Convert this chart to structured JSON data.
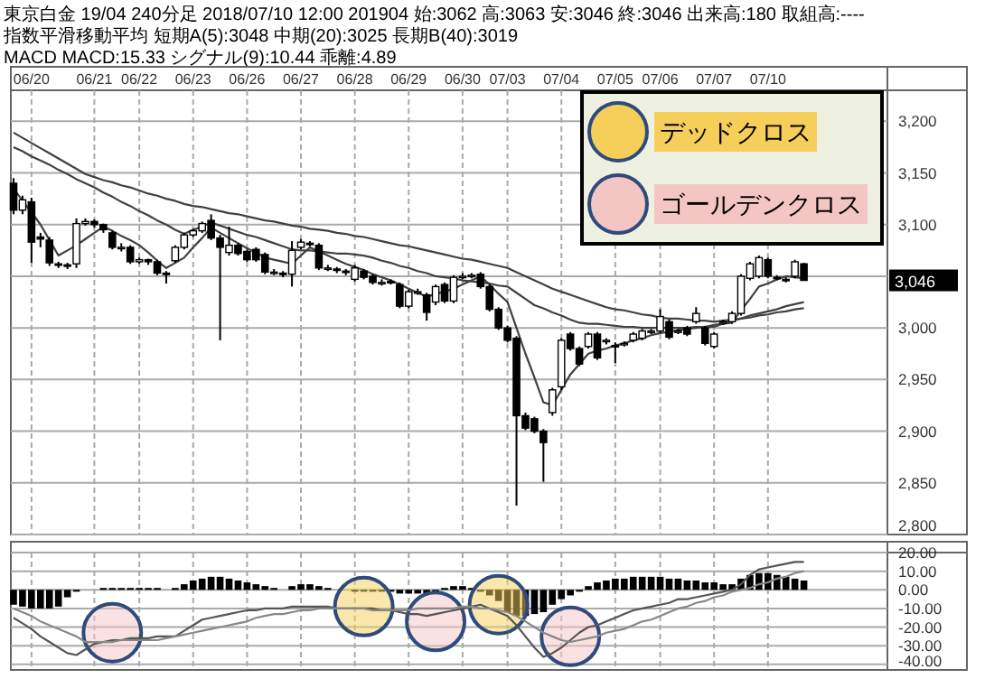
{
  "chart_data": [
    {
      "type": "candlestick",
      "title": "東京白金 19/04 240分足 2018/07/10 12:00 201904 始:3062 高:3063 安:3046 終:3046 出来高:180 取組高:----",
      "subtitle": "指数平滑移動平均 短期A(5):3048 中期(20):3025 長期B(40):3019",
      "categories": [
        null,
        null,
        "06/20",
        null,
        null,
        null,
        null,
        null,
        null,
        "06/21",
        null,
        null,
        null,
        null,
        "06/22",
        null,
        null,
        null,
        null,
        null,
        "06/23",
        null,
        null,
        null,
        null,
        null,
        "06/26",
        null,
        null,
        null,
        null,
        null,
        "06/27",
        null,
        null,
        null,
        null,
        null,
        "06/28",
        null,
        null,
        null,
        null,
        null,
        "06/29",
        null,
        null,
        null,
        null,
        null,
        "06/30",
        null,
        null,
        null,
        null,
        "07/03",
        null,
        null,
        null,
        null,
        null,
        "07/04",
        null,
        null,
        null,
        null,
        null,
        "07/05",
        null,
        null,
        null,
        null,
        "07/06",
        null,
        null,
        null,
        null,
        null,
        "07/07",
        null,
        null,
        null,
        null,
        null,
        "07/10",
        null,
        null,
        null,
        null
      ],
      "ohlc": [
        [
          3140,
          3145,
          3110,
          3114
        ],
        [
          3114,
          3128,
          3110,
          3124
        ],
        [
          3122,
          3126,
          3063,
          3083
        ],
        [
          3088,
          3092,
          3078,
          3086
        ],
        [
          3085,
          3088,
          3060,
          3063
        ],
        [
          3062,
          3064,
          3058,
          3061
        ],
        [
          3061,
          3063,
          3057,
          3060
        ],
        [
          3062,
          3106,
          3058,
          3101
        ],
        [
          3101,
          3106,
          3099,
          3103
        ],
        [
          3103,
          3105,
          3097,
          3100
        ],
        [
          3100,
          3101,
          3092,
          3095
        ],
        [
          3092,
          3094,
          3076,
          3078
        ],
        [
          3078,
          3082,
          3074,
          3078
        ],
        [
          3078,
          3080,
          3062,
          3064
        ],
        [
          3064,
          3068,
          3062,
          3066
        ],
        [
          3066,
          3067,
          3061,
          3064
        ],
        [
          3064,
          3066,
          3051,
          3053
        ],
        [
          3053,
          3055,
          3043,
          3052
        ],
        [
          3065,
          3080,
          3063,
          3078
        ],
        [
          3078,
          3092,
          3076,
          3090
        ],
        [
          3090,
          3096,
          3088,
          3094
        ],
        [
          3094,
          3103,
          3092,
          3101
        ],
        [
          3104,
          3110,
          3085,
          3087
        ],
        [
          3087,
          3090,
          2988,
          3078
        ],
        [
          3073,
          3098,
          3070,
          3080
        ],
        [
          3080,
          3082,
          3070,
          3072
        ],
        [
          3074,
          3076,
          3064,
          3066
        ],
        [
          3076,
          3078,
          3064,
          3066
        ],
        [
          3071,
          3073,
          3052,
          3054
        ],
        [
          3054,
          3057,
          3051,
          3054
        ],
        [
          3053,
          3055,
          3049,
          3052
        ],
        [
          3052,
          3084,
          3040,
          3075
        ],
        [
          3078,
          3086,
          3076,
          3083
        ],
        [
          3082,
          3084,
          3079,
          3081
        ],
        [
          3080,
          3082,
          3056,
          3058
        ],
        [
          3058,
          3061,
          3055,
          3058
        ],
        [
          3057,
          3059,
          3053,
          3056
        ],
        [
          3055,
          3057,
          3051,
          3054
        ],
        [
          3047,
          3061,
          3045,
          3058
        ],
        [
          3055,
          3057,
          3047,
          3049
        ],
        [
          3050,
          3052,
          3042,
          3044
        ],
        [
          3044,
          3047,
          3041,
          3044
        ],
        [
          3045,
          3047,
          3042,
          3044
        ],
        [
          3042,
          3044,
          3019,
          3021
        ],
        [
          3021,
          3037,
          3019,
          3035
        ],
        [
          3035,
          3038,
          3032,
          3035
        ],
        [
          3032,
          3034,
          3007,
          3015
        ],
        [
          3025,
          3042,
          3022,
          3040
        ],
        [
          3042,
          3044,
          3024,
          3026
        ],
        [
          3026,
          3051,
          3024,
          3049
        ],
        [
          3050,
          3053,
          3047,
          3050
        ],
        [
          3051,
          3053,
          3048,
          3051
        ],
        [
          3052,
          3054,
          3038,
          3040
        ],
        [
          3040,
          3042,
          3016,
          3018
        ],
        [
          3018,
          3020,
          2998,
          3000
        ],
        [
          3000,
          3002,
          2986,
          2988
        ],
        [
          2990,
          2992,
          2828,
          2915
        ],
        [
          2915,
          2918,
          2901,
          2903
        ],
        [
          2912,
          2914,
          2898,
          2900
        ],
        [
          2900,
          2902,
          2851,
          2889
        ],
        [
          2918,
          2942,
          2915,
          2940
        ],
        [
          2943,
          2990,
          2940,
          2988
        ],
        [
          2994,
          2996,
          2978,
          2980
        ],
        [
          2980,
          2982,
          2963,
          2965
        ],
        [
          2982,
          2996,
          2980,
          2994
        ],
        [
          2994,
          2996,
          2969,
          2971
        ],
        [
          2987,
          2990,
          2984,
          2988
        ],
        [
          2983,
          2986,
          2966,
          2982
        ],
        [
          2984,
          2987,
          2982,
          2985
        ],
        [
          2988,
          2996,
          2986,
          2994
        ],
        [
          2990,
          2999,
          2988,
          2997
        ],
        [
          2996,
          2999,
          2994,
          2997
        ],
        [
          2997,
          3018,
          2995,
          3011
        ],
        [
          3006,
          3008,
          2989,
          2991
        ],
        [
          2996,
          2999,
          2994,
          2997
        ],
        [
          3000,
          3002,
          2992,
          2994
        ],
        [
          3006,
          3020,
          3004,
          3014
        ],
        [
          3000,
          3002,
          2983,
          2985
        ],
        [
          2982,
          2996,
          2980,
          2994
        ],
        [
          3005,
          3008,
          3003,
          3006
        ],
        [
          3006,
          3016,
          3004,
          3014
        ],
        [
          3014,
          3052,
          3012,
          3050
        ],
        [
          3048,
          3064,
          3046,
          3062
        ],
        [
          3050,
          3070,
          3048,
          3068
        ],
        [
          3066,
          3068,
          3048,
          3050
        ],
        [
          3049,
          3051,
          3046,
          3048
        ],
        [
          3047,
          3049,
          3044,
          3046
        ],
        [
          3050,
          3066,
          3048,
          3064
        ],
        [
          3062,
          3063,
          3046,
          3046
        ]
      ],
      "series": [
        {
          "type": "line",
          "color": "#404040",
          "values": [
            3135,
            3123,
            3112,
            3100,
            3085,
            3070,
            3075,
            3080,
            3086,
            3092,
            3098,
            3094,
            3089,
            3085,
            3080,
            3073,
            3065,
            3058,
            3063,
            3068,
            3078,
            3087,
            3097,
            3092,
            3087,
            3082,
            3077,
            3073,
            3068,
            3066,
            3064,
            3062,
            3070,
            3078,
            3074,
            3070,
            3066,
            3062,
            3059,
            3056,
            3052,
            3049,
            3046,
            3042,
            3038,
            3034,
            3030,
            3033,
            3035,
            3038,
            3042,
            3046,
            3050,
            3042,
            3033,
            3025,
            3000,
            2975,
            2952,
            2928,
            2925,
            2940,
            2955,
            2965,
            2975,
            2978,
            2980,
            2983,
            2985,
            2988,
            2990,
            2993,
            2995,
            2996,
            2998,
            2999,
            3000,
            3001,
            3003,
            3004,
            3005,
            3017,
            3028,
            3040,
            3043,
            3047,
            3050,
            3049,
            3048
          ]
        },
        {
          "type": "line",
          "color": "#404040",
          "values": [
            3175,
            3171,
            3166,
            3162,
            3158,
            3153,
            3149,
            3144,
            3140,
            3136,
            3131,
            3127,
            3122,
            3118,
            3113,
            3109,
            3104,
            3100,
            3095,
            3091,
            3095,
            3098,
            3102,
            3099,
            3096,
            3093,
            3090,
            3088,
            3085,
            3082,
            3079,
            3076,
            3075,
            3075,
            3074,
            3073,
            3072,
            3072,
            3071,
            3070,
            3068,
            3065,
            3063,
            3060,
            3058,
            3055,
            3053,
            3050,
            3049,
            3048,
            3046,
            3045,
            3044,
            3043,
            3041,
            3040,
            3034,
            3028,
            3022,
            3019,
            3015,
            3012,
            3008,
            3005,
            3004,
            3004,
            3003,
            3002,
            3001,
            3001,
            3000,
            3000,
            3000,
            3000,
            3000,
            3000,
            3001,
            3001,
            3001,
            3004,
            3007,
            3009,
            3012,
            3014,
            3016,
            3018,
            3021,
            3023,
            3025
          ]
        },
        {
          "type": "line",
          "color": "#404040",
          "values": [
            3189,
            3184,
            3179,
            3174,
            3169,
            3164,
            3159,
            3154,
            3149,
            3146,
            3143,
            3141,
            3138,
            3136,
            3133,
            3130,
            3128,
            3125,
            3123,
            3120,
            3118,
            3117,
            3115,
            3113,
            3111,
            3110,
            3108,
            3106,
            3104,
            3103,
            3101,
            3099,
            3098,
            3096,
            3095,
            3094,
            3092,
            3091,
            3089,
            3088,
            3086,
            3084,
            3082,
            3080,
            3079,
            3077,
            3075,
            3073,
            3071,
            3069,
            3067,
            3066,
            3064,
            3062,
            3060,
            3058,
            3054,
            3050,
            3046,
            3042,
            3038,
            3035,
            3032,
            3029,
            3026,
            3023,
            3020,
            3018,
            3017,
            3015,
            3013,
            3012,
            3010,
            3009,
            3009,
            3008,
            3007,
            3007,
            3006,
            3007,
            3008,
            3009,
            3010,
            3012,
            3013,
            3015,
            3016,
            3018,
            3019
          ]
        }
      ],
      "ylim": [
        2800,
        3230
      ],
      "yticks": [
        {
          "value": 2800,
          "label": "2,800"
        },
        {
          "value": 2850,
          "label": "2,850"
        },
        {
          "value": 2900,
          "label": "2,900"
        },
        {
          "value": 2950,
          "label": "2,950"
        },
        {
          "value": 3000,
          "label": "3,000"
        },
        {
          "value": 3050,
          "label": null
        },
        {
          "value": 3100,
          "label": "3,100"
        },
        {
          "value": 3150,
          "label": "3,150"
        },
        {
          "value": 3200,
          "label": "3,200"
        }
      ],
      "grid": true,
      "annotations": [
        "3,046",
        "MACD MACD:15.33 シグナル(9):10.44 乖離:4.89"
      ]
    },
    {
      "type": "bar",
      "categories": [
        null,
        null,
        null,
        null,
        null,
        null,
        null,
        null,
        null,
        null,
        null,
        null,
        null,
        null,
        null,
        null,
        null,
        null,
        null,
        null,
        null,
        null,
        null,
        null,
        null,
        null,
        null,
        null,
        null,
        null,
        null,
        null,
        null,
        null,
        null,
        null,
        null,
        null,
        null,
        null,
        null,
        null,
        null,
        null,
        null,
        null,
        null,
        null,
        null,
        null,
        null,
        null,
        null,
        null,
        null,
        null,
        null,
        null,
        null,
        null,
        null,
        null,
        null,
        null,
        null,
        null,
        null,
        null,
        null,
        null,
        null,
        null,
        null,
        null,
        null,
        null,
        null,
        null,
        null,
        null,
        null,
        null,
        null,
        null,
        null,
        null,
        null,
        null,
        null
      ],
      "series": [
        {
          "type": "bar",
          "color": "#000000",
          "values": [
            -8,
            -9,
            -10,
            -10,
            -10,
            -9,
            -4,
            -1,
            0,
            0,
            1,
            1,
            1,
            1,
            1,
            1,
            1,
            0,
            1,
            3,
            5,
            6,
            7,
            7,
            6,
            5,
            4,
            3,
            2,
            1,
            0,
            2,
            3,
            3,
            2,
            1,
            0,
            0,
            -1,
            -1,
            -1,
            -1,
            -1,
            -2,
            -2,
            -2,
            -2,
            -1,
            1,
            2,
            2,
            1,
            -1,
            -3,
            -6,
            -12,
            -14,
            -14,
            -13,
            -12,
            -8,
            -5,
            -3,
            -1,
            2,
            4,
            5,
            6,
            6,
            7,
            7,
            7,
            7,
            6,
            6,
            5,
            5,
            4,
            4,
            3,
            3,
            6,
            8,
            9,
            9,
            8,
            7,
            6,
            5
          ]
        },
        {
          "type": "line",
          "color": "#555555",
          "values": [
            -15,
            -18,
            -21,
            -25,
            -28,
            -31,
            -34,
            -35,
            -32,
            -29,
            -28,
            -27,
            -27,
            -26,
            -26,
            -26,
            -25,
            -25,
            -25,
            -22,
            -19,
            -16,
            -15,
            -14,
            -13,
            -12,
            -11,
            -11,
            -10,
            -10,
            -10,
            -9,
            -9,
            -9,
            -9,
            -9,
            -10,
            -10,
            -10,
            -10,
            -10,
            -11,
            -11,
            -12,
            -13,
            -13,
            -14,
            -13,
            -12,
            -11,
            -10,
            -9,
            -8,
            -10,
            -12,
            -14,
            -19,
            -25,
            -31,
            -36,
            -34,
            -31,
            -27,
            -23,
            -20,
            -19,
            -17,
            -15,
            -13,
            -11,
            -10,
            -9,
            -8,
            -7,
            -5,
            -5,
            -4,
            -3,
            -2,
            -1,
            0,
            3,
            8,
            11,
            12,
            13,
            14,
            15,
            15
          ]
        },
        {
          "type": "line",
          "color": "#888888",
          "values": [
            -10,
            -12,
            -14,
            -17,
            -19,
            -21,
            -23,
            -25,
            -28,
            -28,
            -28,
            -28,
            -27,
            -27,
            -27,
            -27,
            -27,
            -26,
            -25,
            -24,
            -23,
            -22,
            -21,
            -20,
            -19,
            -18,
            -17,
            -15,
            -14,
            -13,
            -13,
            -12,
            -11,
            -11,
            -10,
            -10,
            -10,
            -10,
            -10,
            -10,
            -11,
            -11,
            -11,
            -11,
            -11,
            -10,
            -10,
            -10,
            -10,
            -10,
            -9,
            -9,
            -10,
            -10,
            -11,
            -12,
            -14,
            -17,
            -20,
            -23,
            -25,
            -27,
            -28,
            -27,
            -26,
            -25,
            -23,
            -22,
            -21,
            -19,
            -17,
            -16,
            -14,
            -12,
            -10,
            -9,
            -7,
            -6,
            -4,
            -3,
            -1,
            0,
            1,
            3,
            4,
            6,
            7,
            9,
            10
          ]
        },
        {
          "type": "scatter",
          "name": "デッドクロス",
          "color": "#f5cf5a",
          "marker": "circle",
          "values": [
            null,
            null,
            null,
            null,
            null,
            null,
            null,
            null,
            null,
            null,
            null,
            null,
            null,
            null,
            null,
            null,
            null,
            null,
            null,
            null,
            null,
            null,
            null,
            null,
            null,
            null,
            null,
            null,
            null,
            null,
            null,
            null,
            null,
            null,
            null,
            null,
            null,
            null,
            null,
            -9,
            null,
            null,
            null,
            null,
            null,
            null,
            null,
            null,
            null,
            null,
            null,
            null,
            null,
            null,
            -8,
            null,
            null,
            null,
            null,
            null,
            null,
            null,
            null,
            null,
            null,
            null,
            null,
            null,
            null,
            null,
            null,
            null,
            null,
            null,
            null,
            null,
            null,
            null,
            null,
            null,
            null,
            null,
            null,
            null,
            null,
            null,
            null,
            null,
            null
          ]
        },
        {
          "type": "scatter",
          "name": "ゴールデンクロス",
          "color": "#f4c6c3",
          "marker": "circle",
          "values": [
            null,
            null,
            null,
            null,
            null,
            null,
            null,
            null,
            null,
            null,
            null,
            -23,
            null,
            null,
            null,
            null,
            null,
            null,
            null,
            null,
            null,
            null,
            null,
            null,
            null,
            null,
            null,
            null,
            null,
            null,
            null,
            null,
            null,
            null,
            null,
            null,
            null,
            null,
            null,
            null,
            null,
            null,
            null,
            null,
            null,
            null,
            null,
            -17,
            null,
            null,
            null,
            null,
            null,
            null,
            null,
            null,
            null,
            null,
            null,
            null,
            null,
            null,
            -25,
            null,
            null,
            null,
            null,
            null,
            null,
            null,
            null,
            null,
            null,
            null,
            null,
            null,
            null,
            null,
            null,
            null,
            null,
            null,
            null,
            null,
            null,
            null,
            null,
            null,
            null
          ]
        }
      ],
      "ylim": [
        -43,
        20
      ],
      "yticks": [
        {
          "value": 20,
          "label": "20.00"
        },
        {
          "value": 10,
          "label": "10.00"
        },
        {
          "value": 0,
          "label": "0.00"
        },
        {
          "value": -10,
          "label": "-10.00"
        },
        {
          "value": -20,
          "label": "-20.00"
        },
        {
          "value": -30,
          "label": "-30.00"
        },
        {
          "value": -40,
          "label": "-40.00"
        }
      ],
      "grid": true,
      "legend": "top right",
      "tick_labels": "y"
    }
  ]
}
